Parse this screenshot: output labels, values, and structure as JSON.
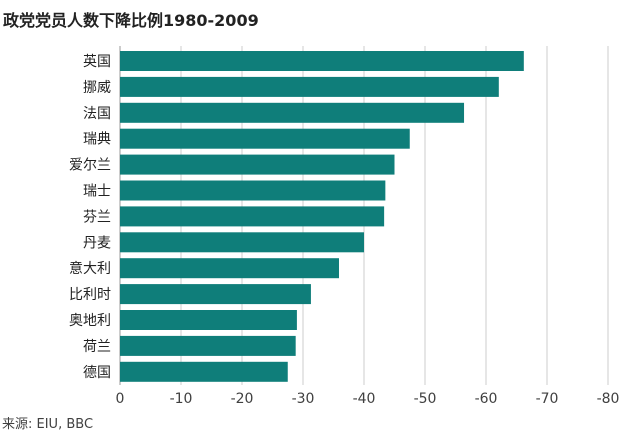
{
  "chart_data": {
    "type": "bar",
    "orientation": "horizontal",
    "title": "政党党员人数下降比例1980-2009",
    "source": "来源: EIU, BBC",
    "categories": [
      "英国",
      "挪威",
      "法国",
      "瑞典",
      "爱尔兰",
      "瑞士",
      "芬兰",
      "丹麦",
      "意大利",
      "比利时",
      "奥地利",
      "荷兰",
      "德国"
    ],
    "values": [
      -66.2,
      -62.1,
      -56.4,
      -47.5,
      -45.0,
      -43.5,
      -43.3,
      -40.0,
      -35.9,
      -31.3,
      -29.0,
      -28.8,
      -27.5
    ],
    "xlim": [
      0,
      -80
    ],
    "xticks": [
      0,
      -10,
      -20,
      -30,
      -40,
      -50,
      -60,
      -70,
      -80
    ],
    "xtick_labels": [
      "0",
      "-10",
      "-20",
      "-30",
      "-40",
      "-50",
      "-60",
      "-70",
      "-80"
    ],
    "grid": "vertical",
    "bar_color": "#0f7e7a",
    "grid_color": "#cccccc"
  }
}
